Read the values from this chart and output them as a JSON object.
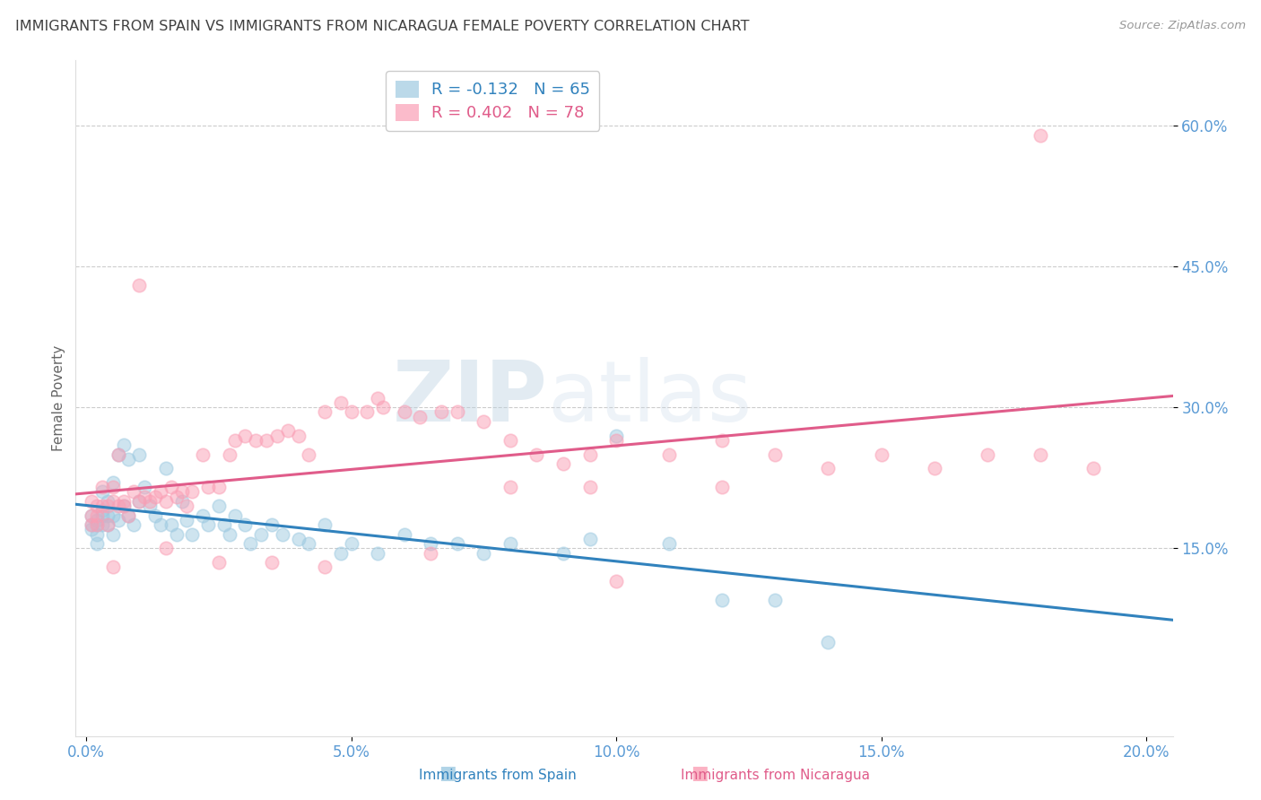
{
  "title": "IMMIGRANTS FROM SPAIN VS IMMIGRANTS FROM NICARAGUA FEMALE POVERTY CORRELATION CHART",
  "source": "Source: ZipAtlas.com",
  "ylabel": "Female Poverty",
  "ytick_labels": [
    "60.0%",
    "45.0%",
    "30.0%",
    "15.0%"
  ],
  "ytick_values": [
    0.6,
    0.45,
    0.3,
    0.15
  ],
  "xtick_labels": [
    "0.0%",
    "5.0%",
    "10.0%",
    "15.0%",
    "20.0%"
  ],
  "xtick_values": [
    0.0,
    0.05,
    0.1,
    0.15,
    0.2
  ],
  "xlim": [
    -0.002,
    0.205
  ],
  "ylim": [
    -0.05,
    0.67
  ],
  "spain_color": "#9ecae1",
  "nicaragua_color": "#fa9fb5",
  "spain_R": -0.132,
  "spain_N": 65,
  "nicaragua_R": 0.402,
  "nicaragua_N": 78,
  "legend_label_spain": "Immigrants from Spain",
  "legend_label_nicaragua": "Immigrants from Nicaragua",
  "watermark_zip": "ZIP",
  "watermark_atlas": "atlas",
  "spain_line_color": "#3182bd",
  "nicaragua_line_color": "#e05c8a",
  "background_color": "#ffffff",
  "grid_color": "#cccccc",
  "axis_label_color": "#5b9bd5",
  "title_color": "#404040",
  "spain_scatter_x": [
    0.001,
    0.001,
    0.001,
    0.002,
    0.002,
    0.002,
    0.002,
    0.003,
    0.003,
    0.003,
    0.003,
    0.004,
    0.004,
    0.004,
    0.005,
    0.005,
    0.005,
    0.006,
    0.006,
    0.007,
    0.007,
    0.008,
    0.008,
    0.009,
    0.01,
    0.01,
    0.011,
    0.012,
    0.013,
    0.014,
    0.015,
    0.016,
    0.017,
    0.018,
    0.019,
    0.02,
    0.022,
    0.023,
    0.025,
    0.026,
    0.027,
    0.028,
    0.03,
    0.031,
    0.033,
    0.035,
    0.037,
    0.04,
    0.042,
    0.045,
    0.048,
    0.05,
    0.055,
    0.06,
    0.065,
    0.07,
    0.075,
    0.08,
    0.09,
    0.095,
    0.1,
    0.11,
    0.12,
    0.13,
    0.14
  ],
  "spain_scatter_y": [
    0.175,
    0.185,
    0.17,
    0.18,
    0.175,
    0.165,
    0.155,
    0.19,
    0.185,
    0.175,
    0.21,
    0.185,
    0.2,
    0.175,
    0.22,
    0.185,
    0.165,
    0.25,
    0.18,
    0.26,
    0.195,
    0.185,
    0.245,
    0.175,
    0.25,
    0.2,
    0.215,
    0.195,
    0.185,
    0.175,
    0.235,
    0.175,
    0.165,
    0.2,
    0.18,
    0.165,
    0.185,
    0.175,
    0.195,
    0.175,
    0.165,
    0.185,
    0.175,
    0.155,
    0.165,
    0.175,
    0.165,
    0.16,
    0.155,
    0.175,
    0.145,
    0.155,
    0.145,
    0.165,
    0.155,
    0.155,
    0.145,
    0.155,
    0.145,
    0.16,
    0.27,
    0.155,
    0.095,
    0.095,
    0.05
  ],
  "nicaragua_scatter_x": [
    0.001,
    0.001,
    0.001,
    0.002,
    0.002,
    0.002,
    0.003,
    0.003,
    0.004,
    0.004,
    0.005,
    0.005,
    0.006,
    0.006,
    0.007,
    0.007,
    0.008,
    0.009,
    0.01,
    0.011,
    0.012,
    0.013,
    0.014,
    0.015,
    0.016,
    0.017,
    0.018,
    0.019,
    0.02,
    0.022,
    0.023,
    0.025,
    0.027,
    0.028,
    0.03,
    0.032,
    0.034,
    0.036,
    0.038,
    0.04,
    0.042,
    0.045,
    0.048,
    0.05,
    0.053,
    0.056,
    0.06,
    0.063,
    0.067,
    0.07,
    0.075,
    0.08,
    0.085,
    0.09,
    0.095,
    0.1,
    0.11,
    0.12,
    0.13,
    0.14,
    0.15,
    0.16,
    0.17,
    0.18,
    0.19,
    0.01,
    0.055,
    0.08,
    0.095,
    0.12,
    0.005,
    0.015,
    0.025,
    0.035,
    0.045,
    0.065,
    0.1,
    0.18
  ],
  "nicaragua_scatter_y": [
    0.175,
    0.185,
    0.2,
    0.195,
    0.175,
    0.185,
    0.195,
    0.215,
    0.195,
    0.175,
    0.2,
    0.215,
    0.195,
    0.25,
    0.2,
    0.195,
    0.185,
    0.21,
    0.2,
    0.205,
    0.2,
    0.205,
    0.21,
    0.2,
    0.215,
    0.205,
    0.21,
    0.195,
    0.21,
    0.25,
    0.215,
    0.215,
    0.25,
    0.265,
    0.27,
    0.265,
    0.265,
    0.27,
    0.275,
    0.27,
    0.25,
    0.295,
    0.305,
    0.295,
    0.295,
    0.3,
    0.295,
    0.29,
    0.295,
    0.295,
    0.285,
    0.265,
    0.25,
    0.24,
    0.25,
    0.265,
    0.25,
    0.265,
    0.25,
    0.235,
    0.25,
    0.235,
    0.25,
    0.25,
    0.235,
    0.43,
    0.31,
    0.215,
    0.215,
    0.215,
    0.13,
    0.15,
    0.135,
    0.135,
    0.13,
    0.145,
    0.115,
    0.59
  ]
}
